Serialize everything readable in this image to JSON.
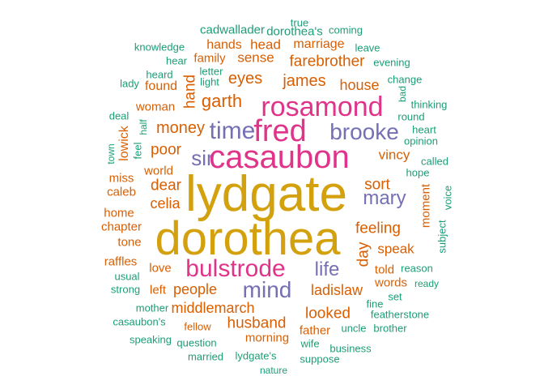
{
  "palette": {
    "gold": "#d4a10e",
    "pink": "#e0348a",
    "purple": "#7570b3",
    "orange": "#d95f02",
    "teal": "#1b9e77"
  },
  "words": [
    {
      "text": "true",
      "group": "teal"
    },
    {
      "text": "cadwallader",
      "group": "teal"
    },
    {
      "text": "dorothea's",
      "group": "teal"
    },
    {
      "text": "coming",
      "group": "teal"
    },
    {
      "text": "knowledge",
      "group": "teal"
    },
    {
      "text": "hands",
      "group": "orange"
    },
    {
      "text": "head",
      "group": "orange"
    },
    {
      "text": "marriage",
      "group": "orange"
    },
    {
      "text": "leave",
      "group": "teal"
    },
    {
      "text": "hear",
      "group": "teal"
    },
    {
      "text": "family",
      "group": "orange"
    },
    {
      "text": "sense",
      "group": "orange"
    },
    {
      "text": "farebrother",
      "group": "orange"
    },
    {
      "text": "evening",
      "group": "teal"
    },
    {
      "text": "heard",
      "group": "teal"
    },
    {
      "text": "letter",
      "group": "teal"
    },
    {
      "text": "light",
      "group": "teal"
    },
    {
      "text": "eyes",
      "group": "orange"
    },
    {
      "text": "james",
      "group": "orange"
    },
    {
      "text": "house",
      "group": "orange"
    },
    {
      "text": "change",
      "group": "teal"
    },
    {
      "text": "lady",
      "group": "teal"
    },
    {
      "text": "found",
      "group": "orange"
    },
    {
      "text": "hand",
      "group": "orange"
    },
    {
      "text": "garth",
      "group": "orange"
    },
    {
      "text": "rosamond",
      "group": "pink"
    },
    {
      "text": "bad",
      "group": "teal"
    },
    {
      "text": "thinking",
      "group": "teal"
    },
    {
      "text": "woman",
      "group": "orange"
    },
    {
      "text": "round",
      "group": "teal"
    },
    {
      "text": "deal",
      "group": "teal"
    },
    {
      "text": "half",
      "group": "teal"
    },
    {
      "text": "money",
      "group": "orange"
    },
    {
      "text": "time",
      "group": "purple"
    },
    {
      "text": "fred",
      "group": "pink"
    },
    {
      "text": "brooke",
      "group": "purple"
    },
    {
      "text": "heart",
      "group": "teal"
    },
    {
      "text": "lowick",
      "group": "orange"
    },
    {
      "text": "feel",
      "group": "teal"
    },
    {
      "text": "opinion",
      "group": "teal"
    },
    {
      "text": "town",
      "group": "teal"
    },
    {
      "text": "poor",
      "group": "orange"
    },
    {
      "text": "sir",
      "group": "purple"
    },
    {
      "text": "casaubon",
      "group": "pink"
    },
    {
      "text": "vincy",
      "group": "orange"
    },
    {
      "text": "called",
      "group": "teal"
    },
    {
      "text": "world",
      "group": "orange"
    },
    {
      "text": "hope",
      "group": "teal"
    },
    {
      "text": "miss",
      "group": "orange"
    },
    {
      "text": "dear",
      "group": "orange"
    },
    {
      "text": "sort",
      "group": "orange"
    },
    {
      "text": "lydgate",
      "group": "gold"
    },
    {
      "text": "caleb",
      "group": "orange"
    },
    {
      "text": "mary",
      "group": "purple"
    },
    {
      "text": "voice",
      "group": "teal"
    },
    {
      "text": "celia",
      "group": "orange"
    },
    {
      "text": "moment",
      "group": "orange"
    },
    {
      "text": "home",
      "group": "orange"
    },
    {
      "text": "chapter",
      "group": "orange"
    },
    {
      "text": "feeling",
      "group": "orange"
    },
    {
      "text": "dorothea",
      "group": "gold"
    },
    {
      "text": "subject",
      "group": "teal"
    },
    {
      "text": "tone",
      "group": "orange"
    },
    {
      "text": "day",
      "group": "orange"
    },
    {
      "text": "speak",
      "group": "orange"
    },
    {
      "text": "raffles",
      "group": "orange"
    },
    {
      "text": "love",
      "group": "orange"
    },
    {
      "text": "bulstrode",
      "group": "pink"
    },
    {
      "text": "life",
      "group": "purple"
    },
    {
      "text": "told",
      "group": "orange"
    },
    {
      "text": "reason",
      "group": "teal"
    },
    {
      "text": "usual",
      "group": "teal"
    },
    {
      "text": "words",
      "group": "orange"
    },
    {
      "text": "ready",
      "group": "teal"
    },
    {
      "text": "strong",
      "group": "teal"
    },
    {
      "text": "left",
      "group": "orange"
    },
    {
      "text": "people",
      "group": "orange"
    },
    {
      "text": "mind",
      "group": "purple"
    },
    {
      "text": "ladislaw",
      "group": "orange"
    },
    {
      "text": "set",
      "group": "teal"
    },
    {
      "text": "fine",
      "group": "teal"
    },
    {
      "text": "mother",
      "group": "teal"
    },
    {
      "text": "middlemarch",
      "group": "orange"
    },
    {
      "text": "looked",
      "group": "orange"
    },
    {
      "text": "featherstone",
      "group": "teal"
    },
    {
      "text": "casaubon's",
      "group": "teal"
    },
    {
      "text": "husband",
      "group": "orange"
    },
    {
      "text": "fellow",
      "group": "orange"
    },
    {
      "text": "father",
      "group": "orange"
    },
    {
      "text": "uncle",
      "group": "teal"
    },
    {
      "text": "brother",
      "group": "teal"
    },
    {
      "text": "morning",
      "group": "orange"
    },
    {
      "text": "speaking",
      "group": "teal"
    },
    {
      "text": "question",
      "group": "teal"
    },
    {
      "text": "wife",
      "group": "teal"
    },
    {
      "text": "business",
      "group": "teal"
    },
    {
      "text": "married",
      "group": "teal"
    },
    {
      "text": "lydgate's",
      "group": "teal"
    },
    {
      "text": "suppose",
      "group": "teal"
    },
    {
      "text": "nature",
      "group": "teal"
    }
  ]
}
